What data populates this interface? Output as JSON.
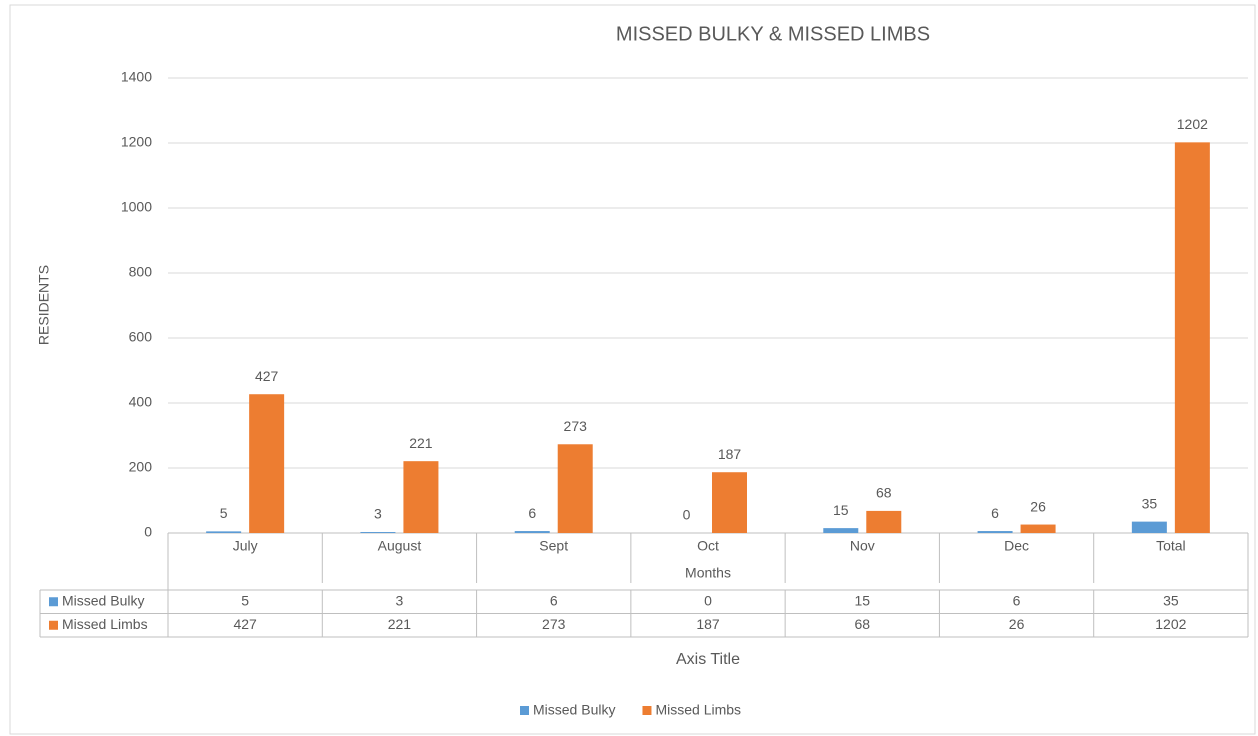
{
  "chart_data": {
    "type": "bar",
    "title": "MISSED BULKY & MISSED LIMBS",
    "ylabel": "RESIDENTS",
    "xlabel": "Months",
    "table_axis_title": "Axis Title",
    "categories": [
      "July",
      "August",
      "Sept",
      "Oct",
      "Nov",
      "Dec",
      "Total"
    ],
    "series": [
      {
        "name": "Missed Bulky",
        "color": "#5b9bd5",
        "values": [
          5,
          3,
          6,
          0,
          15,
          6,
          35
        ]
      },
      {
        "name": "Missed Limbs",
        "color": "#ed7d31",
        "values": [
          427,
          221,
          273,
          187,
          68,
          26,
          1202
        ]
      }
    ],
    "ylim": [
      0,
      1400
    ],
    "yticks": [
      0,
      200,
      400,
      600,
      800,
      1000,
      1200,
      1400
    ],
    "grid": true,
    "legend": "bottom",
    "data_table": true
  }
}
